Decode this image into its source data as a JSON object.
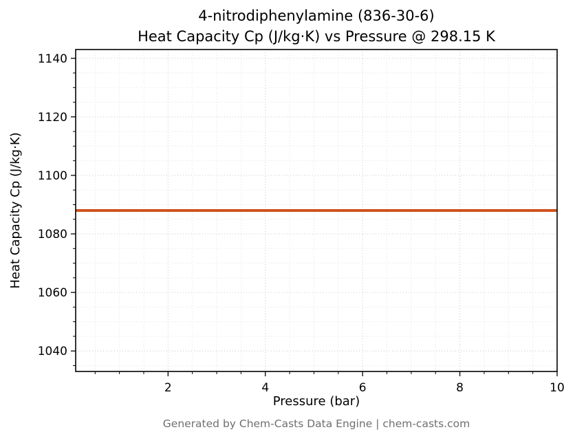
{
  "title": {
    "line1": "4-nitrodiphenylamine (836-30-6)",
    "line2": "Heat Capacity Cp (J/kg·K) vs Pressure @ 298.15 K"
  },
  "footer": "Generated by Chem-Casts Data Engine | chem-casts.com",
  "chart_data": {
    "type": "line",
    "title": "4-nitrodiphenylamine (836-30-6)\nHeat Capacity Cp (J/kg·K) vs Pressure @ 298.15 K",
    "xlabel": "Pressure (bar)",
    "ylabel": "Heat Capacity Cp (J/kg·K)",
    "xlim": [
      0.1,
      10
    ],
    "ylim": [
      1033,
      1143
    ],
    "x_ticks": [
      2,
      4,
      6,
      8,
      10
    ],
    "y_ticks": [
      1040,
      1060,
      1080,
      1100,
      1120,
      1140
    ],
    "x_minor_step": 0.5,
    "y_minor_step": 5,
    "grid": true,
    "legend": "none",
    "series": [
      {
        "name": "Heat Capacity Cp",
        "x": [
          0.1,
          10
        ],
        "y": [
          1088,
          1088
        ],
        "color": "#d0521f",
        "linewidth": 4
      }
    ],
    "colors": {
      "grid_major": "#c6c6c6",
      "grid_minor": "#e1e1e1",
      "axis": "#000000",
      "text": "#000000",
      "footer_text": "#6f6f6f",
      "background": "#ffffff"
    }
  }
}
